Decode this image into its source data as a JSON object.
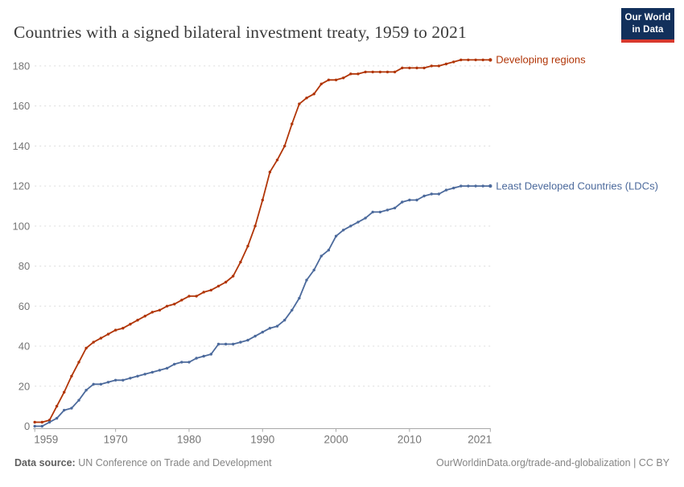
{
  "header": {
    "logo": {
      "line1": "Our World",
      "line2": "in Data"
    }
  },
  "chart_data": {
    "type": "line",
    "title": "Countries with a signed bilateral investment treaty, 1959 to 2021",
    "xlabel": "",
    "ylabel": "",
    "xlim": [
      1959,
      2021
    ],
    "ylim": [
      0,
      190
    ],
    "grid": "horizontal-dashed",
    "legend_position": "line-end-labels",
    "yticks": [
      0,
      20,
      40,
      60,
      80,
      100,
      120,
      140,
      160,
      180
    ],
    "xticks": [
      1959,
      1970,
      1980,
      1990,
      2000,
      2010,
      2021
    ],
    "x": [
      1959,
      1960,
      1961,
      1962,
      1963,
      1964,
      1965,
      1966,
      1967,
      1968,
      1969,
      1970,
      1971,
      1972,
      1973,
      1974,
      1975,
      1976,
      1977,
      1978,
      1979,
      1980,
      1981,
      1982,
      1983,
      1984,
      1985,
      1986,
      1987,
      1988,
      1989,
      1990,
      1991,
      1992,
      1993,
      1994,
      1995,
      1996,
      1997,
      1998,
      1999,
      2000,
      2001,
      2002,
      2003,
      2004,
      2005,
      2006,
      2007,
      2008,
      2009,
      2010,
      2011,
      2012,
      2013,
      2014,
      2015,
      2016,
      2017,
      2018,
      2019,
      2020,
      2021
    ],
    "series": [
      {
        "name": "Developing regions",
        "color": "#b13507",
        "values": [
          2,
          2,
          3,
          10,
          17,
          25,
          32,
          39,
          42,
          44,
          46,
          48,
          49,
          51,
          53,
          55,
          57,
          58,
          60,
          61,
          63,
          65,
          65,
          67,
          68,
          70,
          72,
          75,
          82,
          90,
          100,
          113,
          127,
          133,
          140,
          151,
          161,
          164,
          166,
          171,
          173,
          173,
          174,
          176,
          176,
          177,
          177,
          177,
          177,
          177,
          179,
          179,
          179,
          179,
          180,
          180,
          181,
          182,
          183,
          183,
          183,
          183,
          183
        ]
      },
      {
        "name": "Least Developed Countries (LDCs)",
        "color": "#4c6a9c",
        "values": [
          0,
          0,
          2,
          4,
          8,
          9,
          13,
          18,
          21,
          21,
          22,
          23,
          23,
          24,
          25,
          26,
          27,
          28,
          29,
          31,
          32,
          32,
          34,
          35,
          36,
          41,
          41,
          41,
          42,
          43,
          45,
          47,
          49,
          50,
          53,
          58,
          64,
          73,
          78,
          85,
          88,
          95,
          98,
          100,
          102,
          104,
          107,
          107,
          108,
          109,
          112,
          113,
          113,
          115,
          116,
          116,
          118,
          119,
          120,
          120,
          120,
          120,
          120
        ]
      }
    ]
  },
  "footer": {
    "source_label": "Data source:",
    "source_value": "UN Conference on Trade and Development",
    "url": "OurWorldinData.org/trade-and-globalization",
    "separator": " | ",
    "license": "CC BY"
  },
  "colors": {
    "series_red": "#b13507",
    "series_blue": "#4c6a9c",
    "grid": "#dcdcdc",
    "axis": "#a8a8a8",
    "tick_text": "#757575",
    "title_text": "#3b3b3b",
    "background": "#ffffff",
    "logo_bg": "#12305b",
    "logo_stripe": "#d8392e"
  }
}
